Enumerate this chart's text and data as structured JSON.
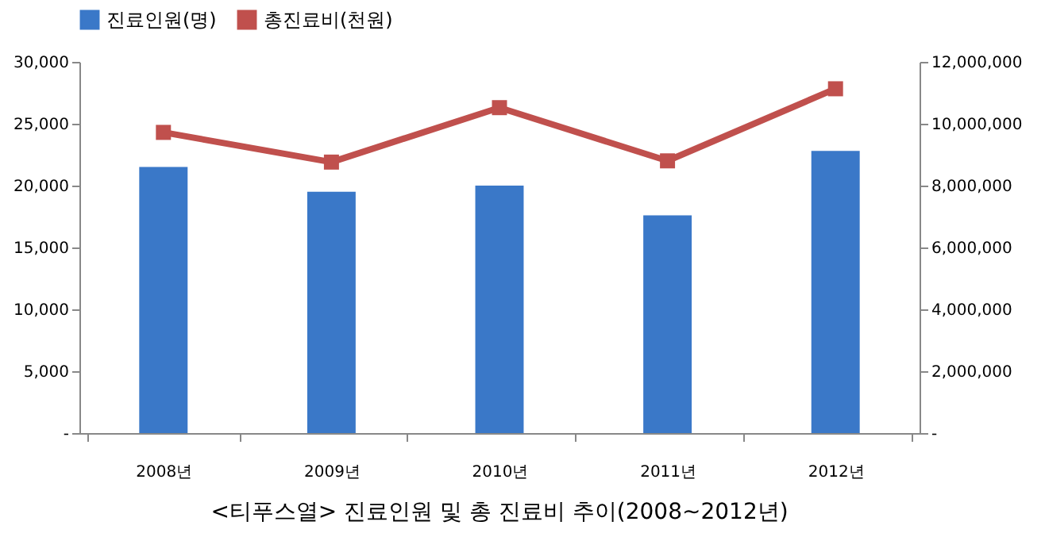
{
  "chart_data": {
    "type": "bar",
    "title": "<티푸스열> 진료인원 및 총 진료비 추이(2008~2012년)",
    "categories": [
      "2008년",
      "2009년",
      "2010년",
      "2011년",
      "2012년"
    ],
    "series": [
      {
        "name": "진료인원(명)",
        "color": "#3a78c8",
        "values": [
          21500,
          19500,
          20000,
          17600,
          22800
        ]
      },
      {
        "name": "총진료비(천원)",
        "color": "#c0504d",
        "type": "line",
        "axis": "y2",
        "marker": "square",
        "values": [
          9720000,
          8760000,
          10520000,
          8800000,
          11130000
        ]
      }
    ],
    "ylim": [
      0,
      30000
    ],
    "yticks": [
      {
        "value": 0,
        "label": "-"
      },
      {
        "value": 5000,
        "label": "5,000"
      },
      {
        "value": 10000,
        "label": "10,000"
      },
      {
        "value": 15000,
        "label": "15,000"
      },
      {
        "value": 20000,
        "label": "20,000"
      },
      {
        "value": 25000,
        "label": "25,000"
      },
      {
        "value": 30000,
        "label": "30,000"
      }
    ],
    "y2lim": [
      0,
      12000000
    ],
    "y2ticks": [
      {
        "value": 0,
        "label": "-"
      },
      {
        "value": 2000000,
        "label": "2,000,000"
      },
      {
        "value": 4000000,
        "label": "4,000,000"
      },
      {
        "value": 6000000,
        "label": "6,000,000"
      },
      {
        "value": 8000000,
        "label": "8,000,000"
      },
      {
        "value": 10000000,
        "label": "10,000,000"
      },
      {
        "value": 12000000,
        "label": "12,000,000"
      }
    ],
    "grid": false,
    "legend": "top"
  }
}
